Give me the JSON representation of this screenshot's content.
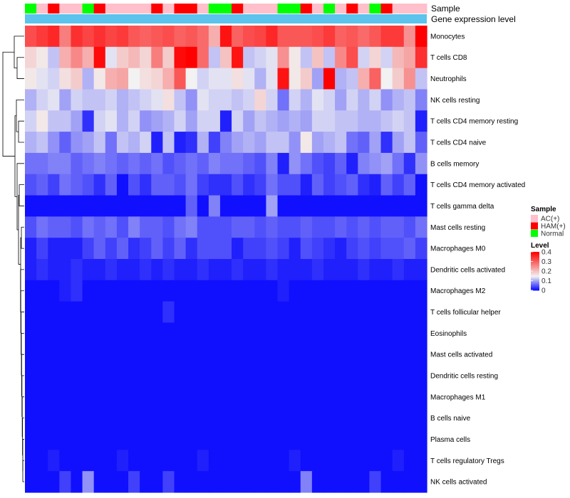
{
  "chart_data": {
    "type": "heatmap",
    "title": "",
    "annotation_tracks": [
      "Sample",
      "Gene expression level"
    ],
    "row_labels": [
      "Monocytes",
      "T cells CD8",
      "Neutrophils",
      "NK cells resting",
      "T cells CD4 memory resting",
      "T cells CD4 naive",
      "B cells memory",
      "T cells CD4 memory activated",
      "T cells gamma delta",
      "Mast cells resting",
      "Macrophages M0",
      "Dendritic cells activated",
      "Macrophages M2",
      "T cells follicular helper",
      "Eosinophils",
      "Mast cells activated",
      "Dendritic cells resting",
      "Macrophages M1",
      "B cells naive",
      "Plasma cells",
      "T cells regulatory  Tregs",
      "NK cells activated"
    ],
    "sample_groups": [
      "Normal",
      "AC(+)",
      "HAM(+)",
      "AC(+)",
      "AC(+)",
      "Normal",
      "HAM(+)",
      "AC(+)",
      "AC(+)",
      "AC(+)",
      "AC(+)",
      "HAM(+)",
      "AC(+)",
      "HAM(+)",
      "HAM(+)",
      "AC(+)",
      "Normal",
      "Normal",
      "HAM(+)",
      "AC(+)",
      "AC(+)",
      "AC(+)",
      "Normal",
      "Normal",
      "HAM(+)",
      "AC(+)",
      "Normal",
      "AC(+)",
      "HAM(+)",
      "AC(+)",
      "Normal",
      "HAM(+)",
      "AC(+)",
      "AC(+)",
      "AC(+)"
    ],
    "color_scale": {
      "min": 0,
      "mid": 0.15,
      "max": 0.4,
      "low_color": "#0000ff",
      "mid_color": "#f2f2f2",
      "high_color": "#ff0000"
    },
    "values": [
      [
        0.32,
        0.34,
        0.36,
        0.27,
        0.35,
        0.33,
        0.35,
        0.33,
        0.34,
        0.31,
        0.3,
        0.31,
        0.32,
        0.3,
        0.31,
        0.29,
        0.22,
        0.38,
        0.3,
        0.32,
        0.33,
        0.36,
        0.31,
        0.31,
        0.31,
        0.32,
        0.34,
        0.3,
        0.31,
        0.29,
        0.31,
        0.34,
        0.34,
        0.25,
        0.4
      ],
      [
        0.18,
        0.16,
        0.12,
        0.22,
        0.26,
        0.22,
        0.39,
        0.14,
        0.19,
        0.21,
        0.18,
        0.27,
        0.19,
        0.39,
        0.4,
        0.29,
        0.12,
        0.2,
        0.38,
        0.12,
        0.13,
        0.14,
        0.25,
        0.16,
        0.12,
        0.2,
        0.12,
        0.26,
        0.32,
        0.13,
        0.18,
        0.13,
        0.21,
        0.23,
        0.35
      ],
      [
        0.16,
        0.14,
        0.13,
        0.17,
        0.19,
        0.11,
        0.16,
        0.22,
        0.23,
        0.15,
        0.17,
        0.18,
        0.22,
        0.31,
        0.15,
        0.13,
        0.14,
        0.14,
        0.17,
        0.14,
        0.11,
        0.14,
        0.38,
        0.16,
        0.19,
        0.1,
        0.4,
        0.11,
        0.12,
        0.22,
        0.3,
        0.15,
        0.19,
        0.25,
        0.12
      ],
      [
        0.11,
        0.13,
        0.14,
        0.1,
        0.13,
        0.12,
        0.12,
        0.13,
        0.11,
        0.12,
        0.13,
        0.14,
        0.17,
        0.12,
        0.09,
        0.14,
        0.13,
        0.13,
        0.12,
        0.13,
        0.18,
        0.13,
        0.07,
        0.13,
        0.11,
        0.14,
        0.13,
        0.1,
        0.13,
        0.11,
        0.13,
        0.09,
        0.11,
        0.12,
        0.08
      ],
      [
        0.13,
        0.16,
        0.12,
        0.12,
        0.1,
        0.03,
        0.13,
        0.14,
        0.11,
        0.13,
        0.09,
        0.1,
        0.11,
        0.13,
        0.1,
        0.13,
        0.13,
        0.02,
        0.13,
        0.1,
        0.12,
        0.11,
        0.1,
        0.11,
        0.1,
        0.13,
        0.13,
        0.12,
        0.12,
        0.11,
        0.11,
        0.12,
        0.13,
        0.12,
        0.02
      ],
      [
        0.11,
        0.12,
        0.09,
        0.06,
        0.09,
        0.1,
        0.12,
        0.07,
        0.12,
        0.11,
        0.13,
        0.02,
        0.12,
        0.02,
        0.03,
        0.11,
        0.04,
        0.08,
        0.1,
        0.11,
        0.1,
        0.12,
        0.12,
        0.09,
        0.16,
        0.1,
        0.11,
        0.12,
        0.07,
        0.06,
        0.1,
        0.03,
        0.1,
        0.12,
        0.06
      ],
      [
        0.07,
        0.07,
        0.08,
        0.08,
        0.06,
        0.07,
        0.08,
        0.07,
        0.06,
        0.07,
        0.06,
        0.07,
        0.05,
        0.06,
        0.07,
        0.06,
        0.08,
        0.07,
        0.07,
        0.06,
        0.05,
        0.08,
        0.02,
        0.09,
        0.07,
        0.05,
        0.04,
        0.06,
        0.02,
        0.08,
        0.09,
        0.1,
        0.07,
        0.03,
        0.09
      ],
      [
        0.05,
        0.06,
        0.04,
        0.07,
        0.06,
        0.05,
        0.03,
        0.06,
        0.01,
        0.05,
        0.03,
        0.06,
        0.06,
        0.05,
        0.07,
        0.04,
        0.03,
        0.03,
        0.05,
        0.03,
        0.04,
        0.07,
        0.05,
        0.05,
        0.02,
        0.06,
        0.04,
        0.05,
        0.06,
        0.03,
        0.02,
        0.06,
        0.04,
        0.06,
        0.01
      ],
      [
        0.01,
        0.01,
        0.01,
        0.01,
        0.01,
        0.01,
        0.01,
        0.01,
        0.01,
        0.01,
        0.01,
        0.01,
        0.01,
        0.01,
        0.06,
        0.01,
        0.08,
        0.01,
        0.01,
        0.01,
        0.01,
        0.1,
        0.01,
        0.01,
        0.01,
        0.01,
        0.01,
        0.01,
        0.01,
        0.01,
        0.01,
        0.01,
        0.01,
        0.01,
        0.01
      ],
      [
        0.05,
        0.07,
        0.06,
        0.06,
        0.05,
        0.07,
        0.06,
        0.07,
        0.05,
        0.08,
        0.06,
        0.06,
        0.05,
        0.07,
        0.08,
        0.05,
        0.05,
        0.05,
        0.06,
        0.06,
        0.05,
        0.06,
        0.05,
        0.05,
        0.06,
        0.05,
        0.05,
        0.06,
        0.05,
        0.06,
        0.05,
        0.06,
        0.06,
        0.05,
        0.07
      ],
      [
        0.02,
        0.04,
        0.02,
        0.02,
        0.02,
        0.04,
        0.06,
        0.04,
        0.06,
        0.03,
        0.04,
        0.06,
        0.04,
        0.06,
        0.03,
        0.05,
        0.05,
        0.05,
        0.02,
        0.04,
        0.04,
        0.05,
        0.04,
        0.02,
        0.05,
        0.04,
        0.03,
        0.02,
        0.04,
        0.05,
        0.04,
        0.05,
        0.05,
        0.06,
        0.04
      ],
      [
        0.02,
        0.03,
        0.02,
        0.02,
        0.03,
        0.02,
        0.02,
        0.03,
        0.02,
        0.02,
        0.03,
        0.02,
        0.03,
        0.02,
        0.02,
        0.03,
        0.02,
        0.02,
        0.03,
        0.02,
        0.02,
        0.03,
        0.02,
        0.02,
        0.02,
        0.03,
        0.02,
        0.02,
        0.02,
        0.03,
        0.02,
        0.02,
        0.03,
        0.02,
        0.02
      ],
      [
        0.01,
        0.01,
        0.01,
        0.02,
        0.03,
        0.01,
        0.01,
        0.01,
        0.01,
        0.01,
        0.01,
        0.01,
        0.01,
        0.01,
        0.01,
        0.01,
        0.01,
        0.01,
        0.01,
        0.01,
        0.01,
        0.01,
        0.02,
        0.01,
        0.01,
        0.01,
        0.01,
        0.01,
        0.01,
        0.01,
        0.01,
        0.01,
        0.01,
        0.01,
        0.01
      ],
      [
        0.01,
        0.01,
        0.01,
        0.01,
        0.01,
        0.01,
        0.01,
        0.01,
        0.01,
        0.01,
        0.01,
        0.01,
        0.03,
        0.01,
        0.01,
        0.01,
        0.01,
        0.01,
        0.01,
        0.01,
        0.01,
        0.01,
        0.01,
        0.01,
        0.01,
        0.01,
        0.01,
        0.01,
        0.01,
        0.01,
        0.01,
        0.01,
        0.01,
        0.01,
        0.01
      ],
      [
        0.01,
        0.01,
        0.01,
        0.01,
        0.01,
        0.01,
        0.01,
        0.01,
        0.01,
        0.01,
        0.01,
        0.01,
        0.01,
        0.01,
        0.01,
        0.01,
        0.01,
        0.01,
        0.01,
        0.01,
        0.01,
        0.01,
        0.01,
        0.01,
        0.01,
        0.01,
        0.01,
        0.01,
        0.01,
        0.01,
        0.01,
        0.01,
        0.01,
        0.01,
        0.01
      ],
      [
        0.01,
        0.01,
        0.01,
        0.01,
        0.01,
        0.01,
        0.01,
        0.01,
        0.01,
        0.01,
        0.01,
        0.01,
        0.01,
        0.01,
        0.01,
        0.01,
        0.01,
        0.01,
        0.01,
        0.01,
        0.01,
        0.01,
        0.01,
        0.01,
        0.01,
        0.01,
        0.01,
        0.01,
        0.01,
        0.01,
        0.01,
        0.01,
        0.01,
        0.01,
        0.01
      ],
      [
        0.01,
        0.01,
        0.01,
        0.01,
        0.01,
        0.01,
        0.01,
        0.01,
        0.01,
        0.01,
        0.01,
        0.01,
        0.01,
        0.01,
        0.01,
        0.01,
        0.01,
        0.01,
        0.01,
        0.01,
        0.01,
        0.01,
        0.01,
        0.01,
        0.01,
        0.01,
        0.01,
        0.01,
        0.01,
        0.01,
        0.01,
        0.01,
        0.01,
        0.01,
        0.01
      ],
      [
        0.01,
        0.01,
        0.01,
        0.01,
        0.01,
        0.01,
        0.01,
        0.01,
        0.01,
        0.01,
        0.01,
        0.01,
        0.01,
        0.01,
        0.01,
        0.01,
        0.01,
        0.01,
        0.01,
        0.01,
        0.01,
        0.01,
        0.01,
        0.01,
        0.01,
        0.01,
        0.01,
        0.01,
        0.01,
        0.01,
        0.01,
        0.01,
        0.01,
        0.01,
        0.01
      ],
      [
        0.01,
        0.01,
        0.01,
        0.01,
        0.01,
        0.01,
        0.01,
        0.01,
        0.01,
        0.01,
        0.01,
        0.01,
        0.01,
        0.01,
        0.01,
        0.01,
        0.01,
        0.01,
        0.01,
        0.01,
        0.01,
        0.01,
        0.01,
        0.01,
        0.01,
        0.01,
        0.01,
        0.01,
        0.01,
        0.01,
        0.01,
        0.01,
        0.01,
        0.01,
        0.01
      ],
      [
        0.01,
        0.01,
        0.01,
        0.01,
        0.01,
        0.01,
        0.01,
        0.01,
        0.01,
        0.01,
        0.01,
        0.01,
        0.01,
        0.01,
        0.01,
        0.01,
        0.01,
        0.01,
        0.01,
        0.01,
        0.01,
        0.01,
        0.01,
        0.01,
        0.01,
        0.01,
        0.01,
        0.01,
        0.01,
        0.01,
        0.01,
        0.01,
        0.01,
        0.01,
        0.01
      ],
      [
        0.01,
        0.01,
        0.02,
        0.01,
        0.01,
        0.01,
        0.01,
        0.01,
        0.02,
        0.01,
        0.01,
        0.01,
        0.01,
        0.01,
        0.01,
        0.02,
        0.01,
        0.01,
        0.01,
        0.01,
        0.01,
        0.01,
        0.01,
        0.02,
        0.01,
        0.01,
        0.01,
        0.01,
        0.01,
        0.01,
        0.01,
        0.01,
        0.02,
        0.01,
        0.01
      ],
      [
        0.01,
        0.01,
        0.01,
        0.04,
        0.01,
        0.09,
        0.01,
        0.01,
        0.01,
        0.04,
        0.01,
        0.01,
        0.04,
        0.01,
        0.01,
        0.01,
        0.01,
        0.01,
        0.01,
        0.01,
        0.01,
        0.01,
        0.01,
        0.01,
        0.08,
        0.01,
        0.01,
        0.01,
        0.01,
        0.01,
        0.04,
        0.01,
        0.01,
        0.01,
        0.01
      ]
    ],
    "legends": {
      "sample": {
        "title": "Sample",
        "items": [
          {
            "label": "AC(+)",
            "color": "#ffc0cb"
          },
          {
            "label": "HAM(+)",
            "color": "#ff0000"
          },
          {
            "label": "Normal",
            "color": "#00ff00"
          }
        ]
      },
      "level": {
        "title": "Level",
        "ticks": [
          "0.4",
          "0.3",
          "0.2",
          "0.1",
          "0"
        ],
        "tick_values": [
          0.4,
          0.3,
          0.2,
          0.1,
          0
        ]
      }
    },
    "gene_expression_color": "#5bc3ec"
  }
}
